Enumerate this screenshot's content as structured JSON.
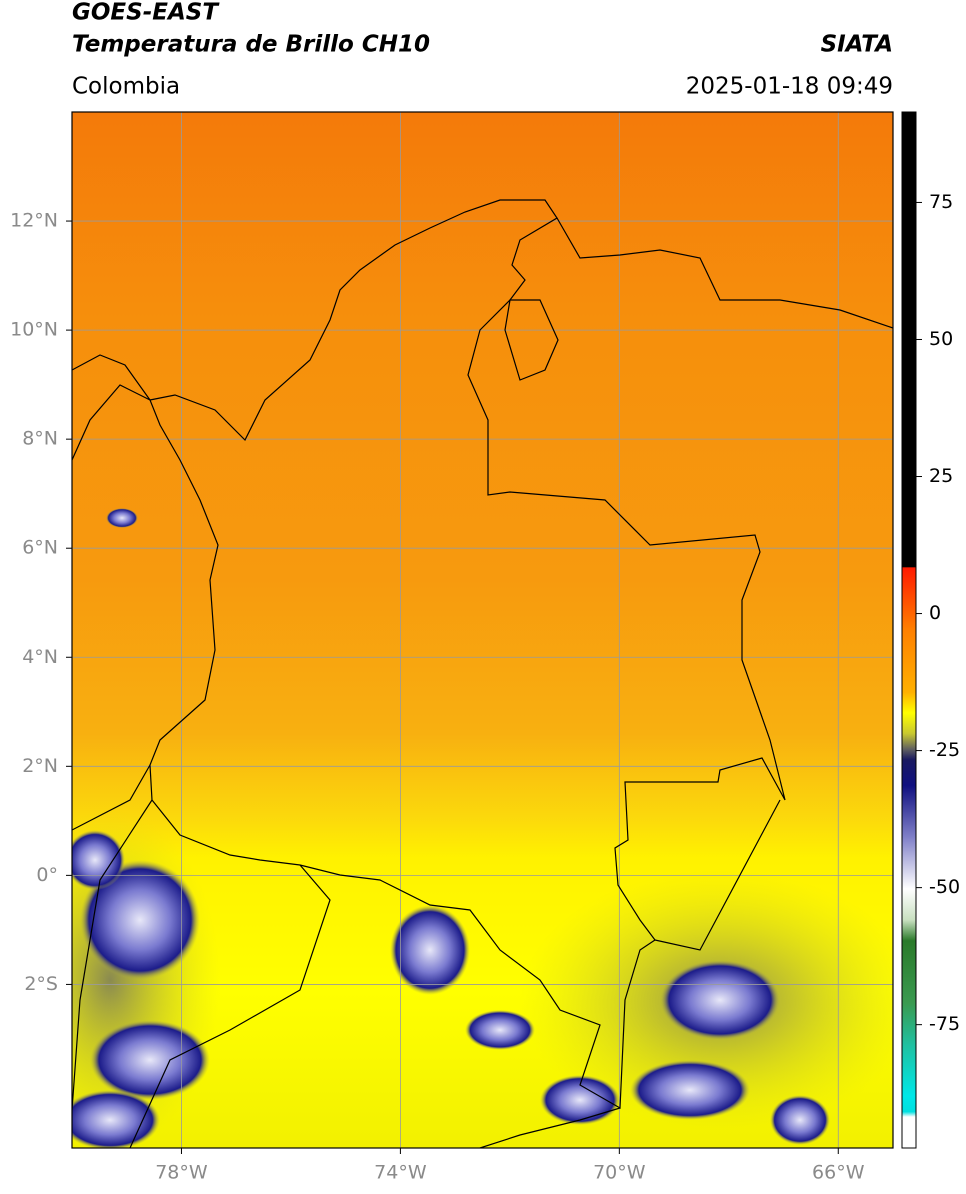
{
  "header": {
    "title": "GOES-EAST",
    "subtitle": "Temperatura de Brillo CH10",
    "source": "SIATA",
    "region": "Colombia",
    "datetime": "2025-01-18 09:49"
  },
  "map": {
    "xlim": [
      -80,
      -65
    ],
    "ylim": [
      -5,
      14
    ],
    "xticks": [
      {
        "value": -78,
        "label": "78°W"
      },
      {
        "value": -74,
        "label": "74°W"
      },
      {
        "value": -70,
        "label": "70°W"
      },
      {
        "value": -66,
        "label": "66°W"
      }
    ],
    "yticks": [
      {
        "value": 12,
        "label": "12°N"
      },
      {
        "value": 10,
        "label": "10°N"
      },
      {
        "value": 8,
        "label": "8°N"
      },
      {
        "value": 6,
        "label": "6°N"
      },
      {
        "value": 4,
        "label": "4°N"
      },
      {
        "value": 2,
        "label": "2°N"
      },
      {
        "value": 0,
        "label": "0°"
      },
      {
        "value": -2,
        "label": "2°S"
      }
    ],
    "grid": true
  },
  "colorbar": {
    "lim": [
      -97.5,
      91.5
    ],
    "ticks": [
      75,
      50,
      25,
      0,
      -25,
      -50,
      -75
    ]
  }
}
